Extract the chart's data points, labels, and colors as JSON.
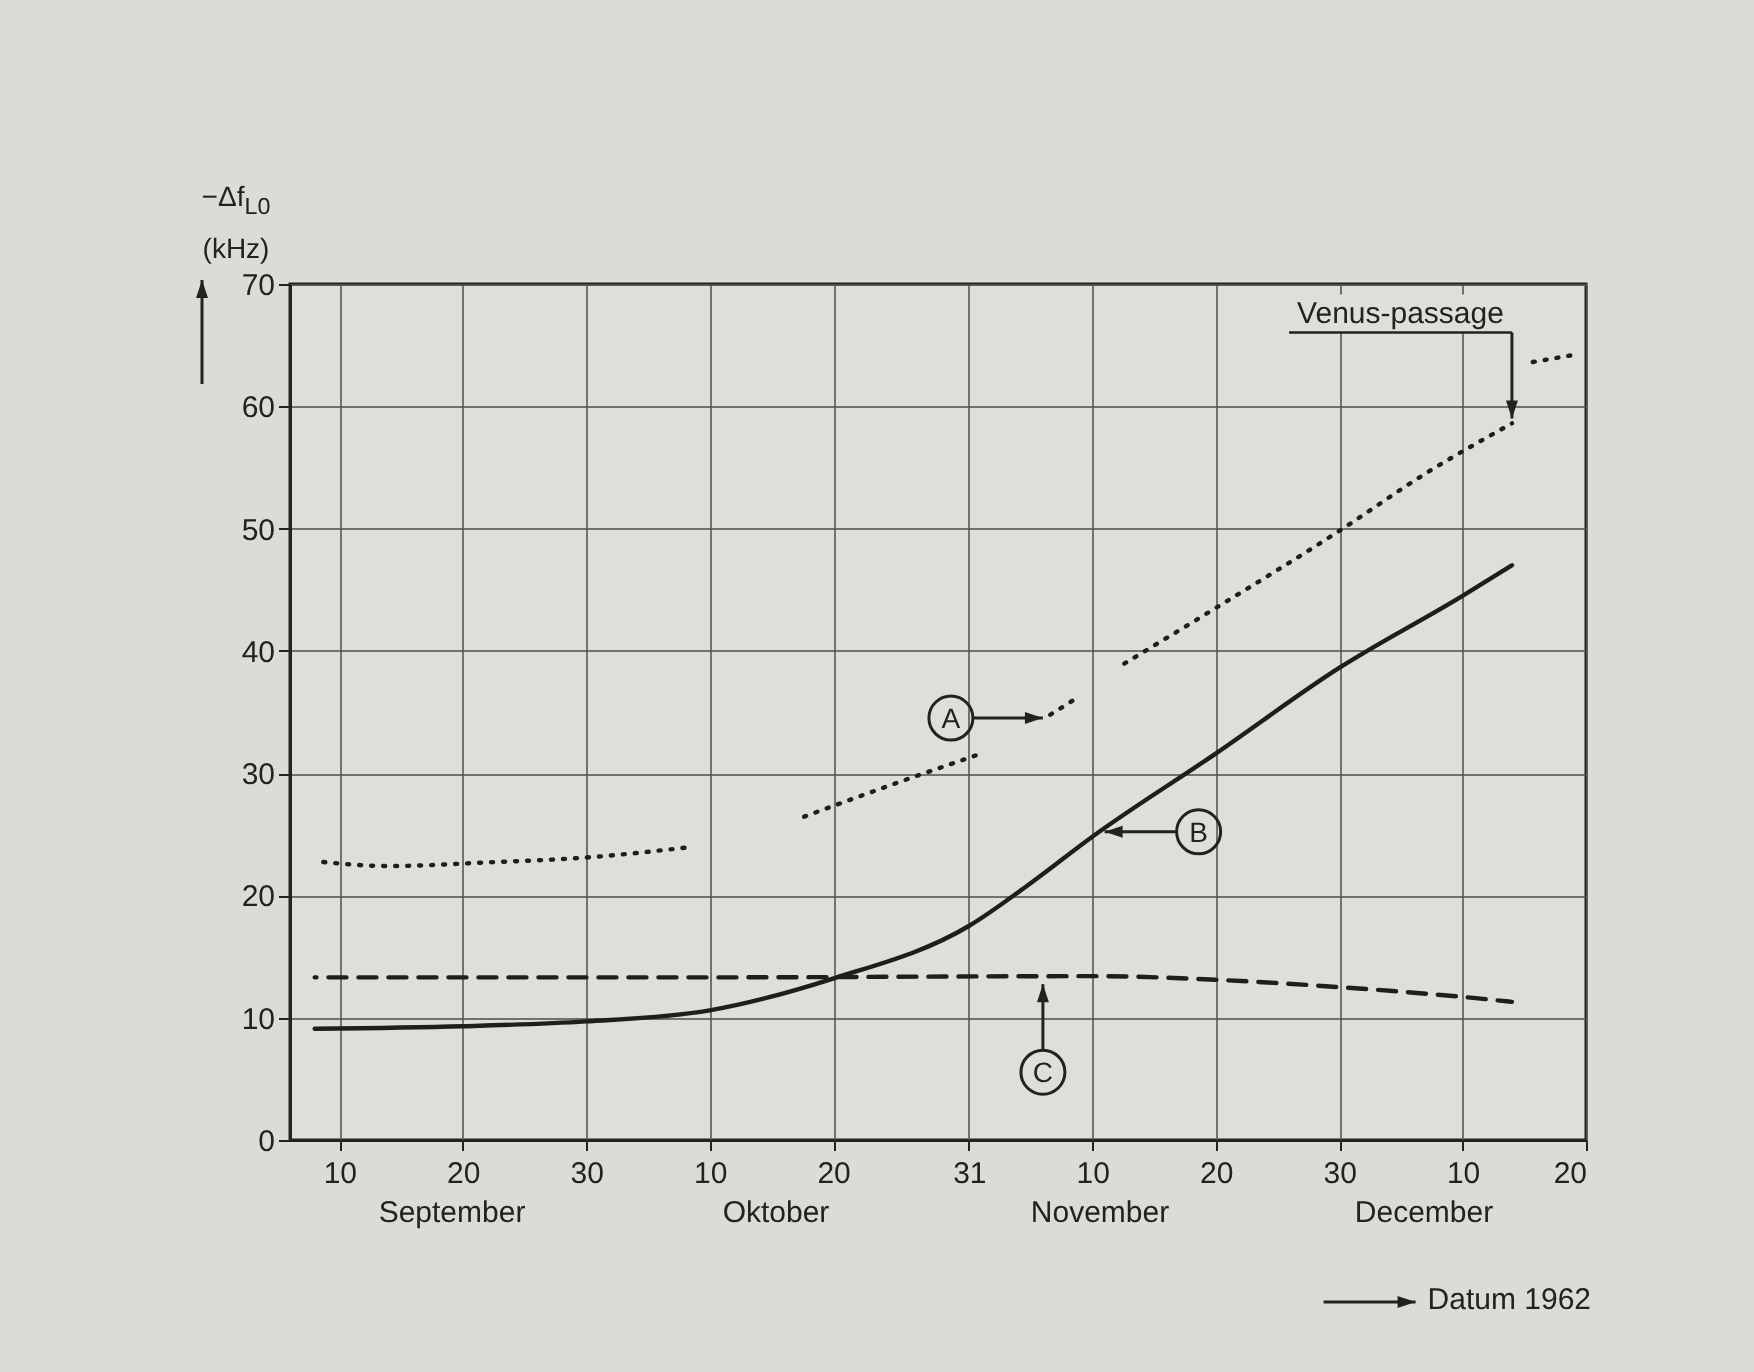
{
  "chart_data": {
    "type": "line",
    "ylabel": "−Δf$_{L0}$ (kHz)",
    "xlabel": "Datum 1962",
    "xlim": [
      "1962-09-06",
      "1962-12-20"
    ],
    "xticks": [
      {
        "value": "1962-09-10",
        "label": "10"
      },
      {
        "value": "1962-09-20",
        "label": "20"
      },
      {
        "value": "1962-09-30",
        "label": "30"
      },
      {
        "value": "1962-10-10",
        "label": "10"
      },
      {
        "value": "1962-10-20",
        "label": "20"
      },
      {
        "value": "1962-10-31",
        "label": "31"
      },
      {
        "value": "1962-11-10",
        "label": "10"
      },
      {
        "value": "1962-11-20",
        "label": "20"
      },
      {
        "value": "1962-11-30",
        "label": "30"
      },
      {
        "value": "1962-12-10",
        "label": "10"
      },
      {
        "value": "1962-12-20",
        "label": "20"
      }
    ],
    "ylim": [
      0,
      70
    ],
    "yticks": [
      0,
      10,
      20,
      30,
      40,
      50,
      60,
      70
    ],
    "grid": true,
    "series": [
      {
        "color": "#1e1e1e",
        "line_style": "dotted",
        "x": [
          "1962-09-08",
          "1962-09-14",
          "1962-09-22",
          "1962-09-30",
          "1962-10-08",
          "1962-10-13",
          "1962-10-17",
          "1962-10-26",
          "1962-11-01",
          "1962-11-03",
          "1962-11-06",
          "1962-11-09",
          "1962-11-10",
          "1962-11-12",
          "1962-11-20",
          "1962-11-30",
          "1962-12-07",
          "1962-12-14",
          "1962-12-14T12:00",
          "1962-12-15",
          "1962-12-19"
        ],
        "values": [
          22.8,
          22.4,
          22.7,
          23.1,
          23.9,
          null,
          26.2,
          29.5,
          31.6,
          null,
          34.4,
          36.3,
          null,
          38.6,
          43.5,
          49.8,
          54.5,
          58.6,
          null,
          63.5,
          64.2
        ]
      },
      {
        "color": "#1e1e1e",
        "line_style": "solid",
        "x": [
          "1962-09-08",
          "1962-09-20",
          "1962-09-30",
          "1962-10-10",
          "1962-10-20",
          "1962-10-31",
          "1962-11-05",
          "1962-11-10",
          "1962-11-20",
          "1962-11-30",
          "1962-12-10",
          "1962-12-14"
        ],
        "values": [
          9.1,
          9.3,
          9.7,
          10.6,
          13.2,
          17.5,
          21,
          24.8,
          31.6,
          38.6,
          44.5,
          47
        ]
      },
      {
        "color": "#1e1e1e",
        "line_style": "dashed",
        "x": [
          "1962-09-08",
          "1962-10-10",
          "1962-11-10",
          "1962-11-20",
          "1962-11-30",
          "1962-12-10",
          "1962-12-14"
        ],
        "values": [
          13.3,
          13.3,
          13.4,
          13.1,
          12.5,
          11.7,
          11.3
        ]
      }
    ],
    "annotations": [
      {
        "text": "A",
        "x": "1962-11-06",
        "y": 34.5
      },
      {
        "text": "B",
        "x": "1962-11-11",
        "y": 25.2
      },
      {
        "text": "C",
        "x": "1962-11-06",
        "y": 13.4
      },
      {
        "text": "Venus-passage",
        "x": "1962-12-14",
        "y": 59
      },
      "September",
      "Oktober",
      "November",
      "December"
    ]
  }
}
